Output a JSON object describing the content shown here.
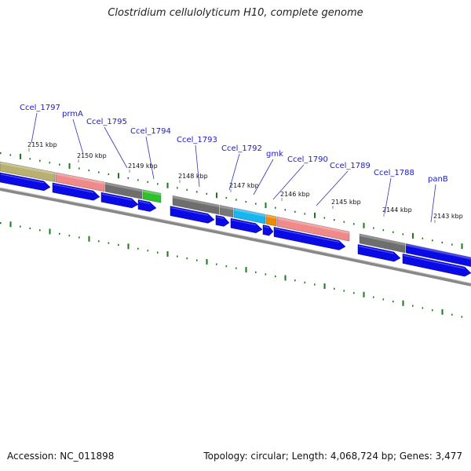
{
  "title": "Clostridium cellulolyticum H10, complete genome",
  "footer": {
    "accession": "Accession: NC_011898",
    "summary": "Topology: circular; Length: 4,068,724 bp; Genes: 3,477"
  },
  "colors": {
    "cds_arrow": "#0a0ae6",
    "backbone": "#888888",
    "tick": "#1a7a1a",
    "label": "#1a1acc",
    "leader": "#3333bb"
  },
  "ticks": [
    {
      "label": "2151 kbp",
      "value": 2151
    },
    {
      "label": "2150 kbp",
      "value": 2150
    },
    {
      "label": "2149 kbp",
      "value": 2149
    },
    {
      "label": "2148 kbp",
      "value": 2148
    },
    {
      "label": "2147 kbp",
      "value": 2147
    },
    {
      "label": "2146 kbp",
      "value": 2146
    },
    {
      "label": "2145 kbp",
      "value": 2145
    },
    {
      "label": "2144 kbp",
      "value": 2144
    },
    {
      "label": "2143 kbp",
      "value": 2143
    }
  ],
  "features": [
    {
      "label": "",
      "color": "#b7b071"
    },
    {
      "label": "prmA",
      "color": "#f08a8a"
    },
    {
      "label": "Ccel_1795",
      "color": "#6e6e6e"
    },
    {
      "label": "Ccel_1794",
      "color": "#2fbf2f"
    },
    {
      "label": "Ccel_1793",
      "color": "#6e6e6e"
    },
    {
      "label": "Ccel_1792",
      "color": "#777777"
    },
    {
      "label": "",
      "color": "#17b6f0"
    },
    {
      "label": "gmk",
      "color": "#f08a00"
    },
    {
      "label": "Ccel_1790",
      "color": "#f08a8a"
    },
    {
      "label": "Ccel_1788",
      "color": "#6e6e6e"
    },
    {
      "label": "panB",
      "color": "#0a0ae6"
    }
  ],
  "gene_labels": [
    {
      "label": "Ccel_1797"
    },
    {
      "label": "prmA"
    },
    {
      "label": "Ccel_1795"
    },
    {
      "label": "Ccel_1794"
    },
    {
      "label": "Ccel_1793"
    },
    {
      "label": "Ccel_1792"
    },
    {
      "label": "gmk"
    },
    {
      "label": "Ccel_1790"
    },
    {
      "label": "Ccel_1789"
    },
    {
      "label": "Ccel_1788"
    },
    {
      "label": "panB"
    }
  ]
}
